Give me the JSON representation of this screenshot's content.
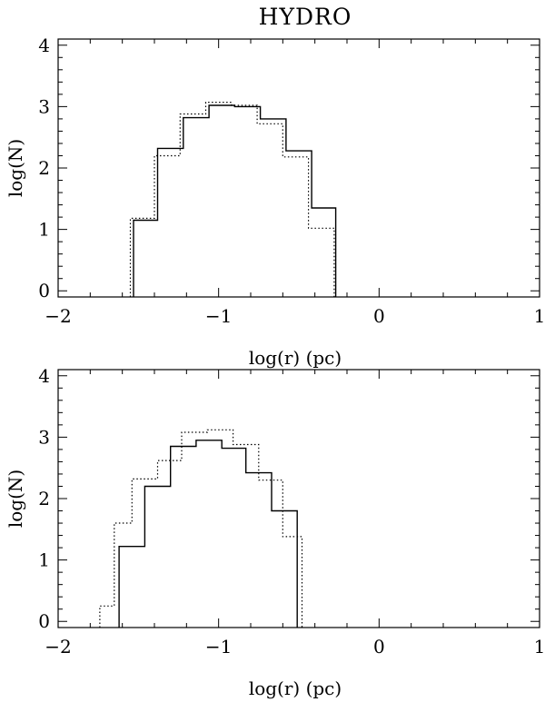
{
  "figure_title": "HYDRO",
  "chart_data": [
    {
      "type": "step-histogram",
      "title": "HYDRO",
      "xlabel": "log(r) (pc)",
      "ylabel": "log(N)",
      "xlim": [
        -2,
        1
      ],
      "ylim": [
        -0.1,
        4.1
      ],
      "xticks": [
        -2,
        -1,
        0,
        1
      ],
      "xtick_labels": [
        "−2",
        "−1",
        "0",
        "1"
      ],
      "yticks": [
        0,
        1,
        2,
        3,
        4
      ],
      "ytick_labels": [
        "0",
        "1",
        "2",
        "3",
        "4"
      ],
      "series": [
        {
          "name": "solid",
          "style": "solid",
          "edges": [
            -1.53,
            -1.38,
            -1.22,
            -1.06,
            -0.9,
            -0.74,
            -0.58,
            -0.42,
            -0.27
          ],
          "values": [
            1.15,
            2.32,
            2.82,
            3.02,
            3.0,
            2.8,
            2.28,
            1.35
          ]
        },
        {
          "name": "dotted",
          "style": "dotted",
          "edges": [
            -1.55,
            -1.4,
            -1.24,
            -1.08,
            -0.92,
            -0.76,
            -0.6,
            -0.44,
            -0.28
          ],
          "values": [
            1.18,
            2.2,
            2.88,
            3.07,
            3.02,
            2.72,
            2.18,
            1.02
          ]
        }
      ]
    },
    {
      "type": "step-histogram",
      "title": "",
      "xlabel": "log(r) (pc)",
      "ylabel": "log(N)",
      "xlim": [
        -2,
        1
      ],
      "ylim": [
        -0.1,
        4.1
      ],
      "xticks": [
        -2,
        -1,
        0,
        1
      ],
      "xtick_labels": [
        "−2",
        "−1",
        "0",
        "1"
      ],
      "yticks": [
        0,
        1,
        2,
        3,
        4
      ],
      "ytick_labels": [
        "0",
        "1",
        "2",
        "3",
        "4"
      ],
      "series": [
        {
          "name": "solid",
          "style": "solid",
          "edges": [
            -1.62,
            -1.46,
            -1.3,
            -1.14,
            -0.98,
            -0.83,
            -0.67,
            -0.51
          ],
          "values": [
            1.22,
            2.2,
            2.85,
            2.95,
            2.82,
            2.42,
            1.8
          ]
        },
        {
          "name": "dotted",
          "style": "dotted",
          "edges": [
            -1.74,
            -1.65,
            -1.54,
            -1.38,
            -1.23,
            -1.07,
            -0.91,
            -0.75,
            -0.6,
            -0.48
          ],
          "values": [
            0.25,
            1.6,
            2.32,
            2.62,
            3.08,
            3.12,
            2.88,
            2.3,
            1.38
          ]
        }
      ]
    }
  ]
}
